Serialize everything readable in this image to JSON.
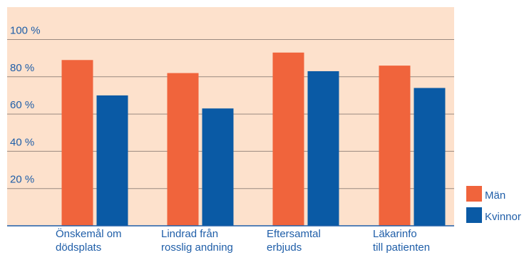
{
  "chart_data": {
    "type": "bar",
    "title": "",
    "xlabel": "",
    "ylabel": "",
    "ylim": [
      0,
      100
    ],
    "yticks": [
      20,
      40,
      60,
      80,
      100
    ],
    "ytick_labels": [
      "20 %",
      "40 %",
      "60 %",
      "80 %",
      "100 %"
    ],
    "grid": true,
    "legend_position": "bottom-right",
    "categories": [
      [
        "Önskemål om",
        "dödsplats"
      ],
      [
        "Lindrad från",
        "rosslig andning"
      ],
      [
        "Eftersamtal",
        "erbjuds"
      ],
      [
        "Läkarinfo",
        "till patienten"
      ]
    ],
    "series": [
      {
        "name": "Män",
        "color": "#f0643c",
        "values": [
          89,
          82,
          93,
          86
        ]
      },
      {
        "name": "Kvinnor",
        "color": "#0a5aa5",
        "values": [
          70,
          63,
          83,
          74
        ]
      }
    ],
    "colors": {
      "plot_background": "#fde1cc",
      "grid": "#9a8a80",
      "text": "#1f5ea8",
      "axis": "#1f5ea8"
    }
  }
}
